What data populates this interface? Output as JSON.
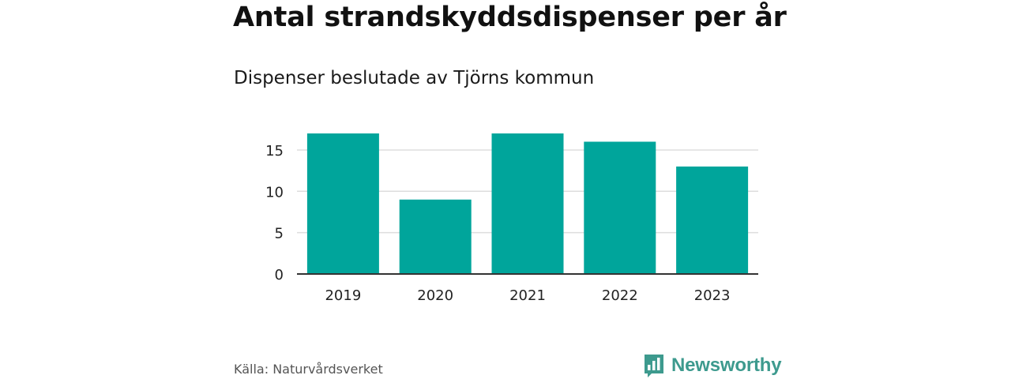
{
  "header": {
    "title": "Antal strandskyddsdispenser per år",
    "subtitle": "Dispenser beslutade av Tjörns kommun"
  },
  "footer": {
    "source": "Källa: Naturvårdsverket",
    "brand": "Newsworthy",
    "brand_icon": "bar-chart-speech-icon"
  },
  "colors": {
    "bar": "#00a59b",
    "grid": "#dddddd",
    "axis": "#333333",
    "brand": "#3d9a8e"
  },
  "chart_data": {
    "type": "bar",
    "title": "Antal strandskyddsdispenser per år",
    "subtitle": "Dispenser beslutade av Tjörns kommun",
    "categories": [
      "2019",
      "2020",
      "2021",
      "2022",
      "2023"
    ],
    "values": [
      17,
      9,
      17,
      16,
      13
    ],
    "xlabel": "",
    "ylabel": "",
    "ylim": [
      0,
      17
    ],
    "yticks": [
      0,
      5,
      10,
      15
    ],
    "grid": true,
    "legend": "none"
  }
}
